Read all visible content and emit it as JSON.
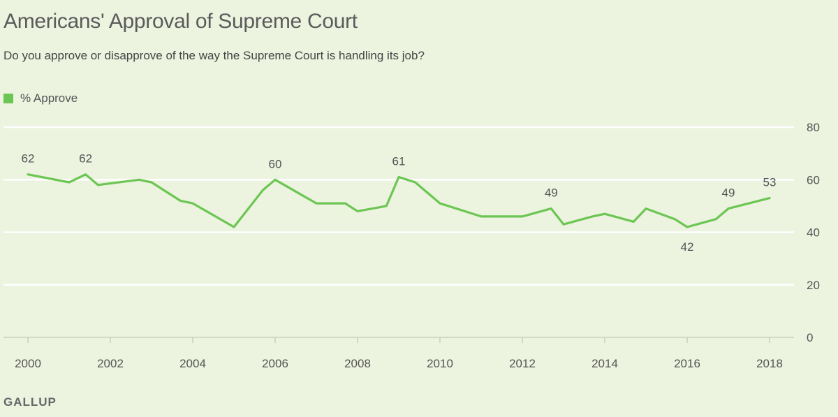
{
  "header": {
    "title": "Americans' Approval of Supreme Court",
    "subtitle": "Do you approve or disapprove of the way the Supreme Court is handling its job?"
  },
  "legend": {
    "label": "% Approve"
  },
  "source": "GALLUP",
  "colors": {
    "series": "#6cc653",
    "grid": "#ffffff",
    "background": "#ecf3df"
  },
  "chart_data": {
    "type": "line",
    "title": "Americans' Approval of Supreme Court",
    "subtitle": "Do you approve or disapprove of the way the Supreme Court is handling its job?",
    "xlabel": "",
    "ylabel": "",
    "xlim": [
      2000,
      2018
    ],
    "ylim": [
      0,
      80
    ],
    "xticks": [
      2000,
      2002,
      2004,
      2006,
      2008,
      2010,
      2012,
      2014,
      2016,
      2018
    ],
    "yticks": [
      0,
      20,
      40,
      60,
      80
    ],
    "grid": true,
    "legend_position": "top-left",
    "series": [
      {
        "name": "% Approve",
        "x": [
          2000.0,
          2001.0,
          2001.4,
          2001.7,
          2002.7,
          2003.0,
          2003.7,
          2004.0,
          2005.0,
          2005.7,
          2006.0,
          2007.0,
          2007.7,
          2008.0,
          2008.7,
          2009.0,
          2009.4,
          2010.0,
          2011.0,
          2011.7,
          2012.0,
          2012.7,
          2013.0,
          2013.7,
          2014.0,
          2014.7,
          2015.0,
          2015.7,
          2016.0,
          2016.7,
          2017.0,
          2018.0
        ],
        "y": [
          62,
          59,
          62,
          58,
          60,
          59,
          52,
          51,
          42,
          56,
          60,
          51,
          51,
          48,
          50,
          61,
          59,
          51,
          46,
          46,
          46,
          49,
          43,
          46,
          47,
          44,
          49,
          45,
          42,
          45,
          49,
          53
        ]
      }
    ],
    "annotations": [
      {
        "x": 2000.0,
        "y": 62,
        "text": "62",
        "pos": "above"
      },
      {
        "x": 2001.4,
        "y": 62,
        "text": "62",
        "pos": "above"
      },
      {
        "x": 2006.0,
        "y": 60,
        "text": "60",
        "pos": "above"
      },
      {
        "x": 2009.0,
        "y": 61,
        "text": "61",
        "pos": "above"
      },
      {
        "x": 2012.7,
        "y": 49,
        "text": "49",
        "pos": "above"
      },
      {
        "x": 2016.0,
        "y": 42,
        "text": "42",
        "pos": "below"
      },
      {
        "x": 2017.0,
        "y": 49,
        "text": "49",
        "pos": "above"
      },
      {
        "x": 2018.0,
        "y": 53,
        "text": "53",
        "pos": "above"
      }
    ]
  }
}
